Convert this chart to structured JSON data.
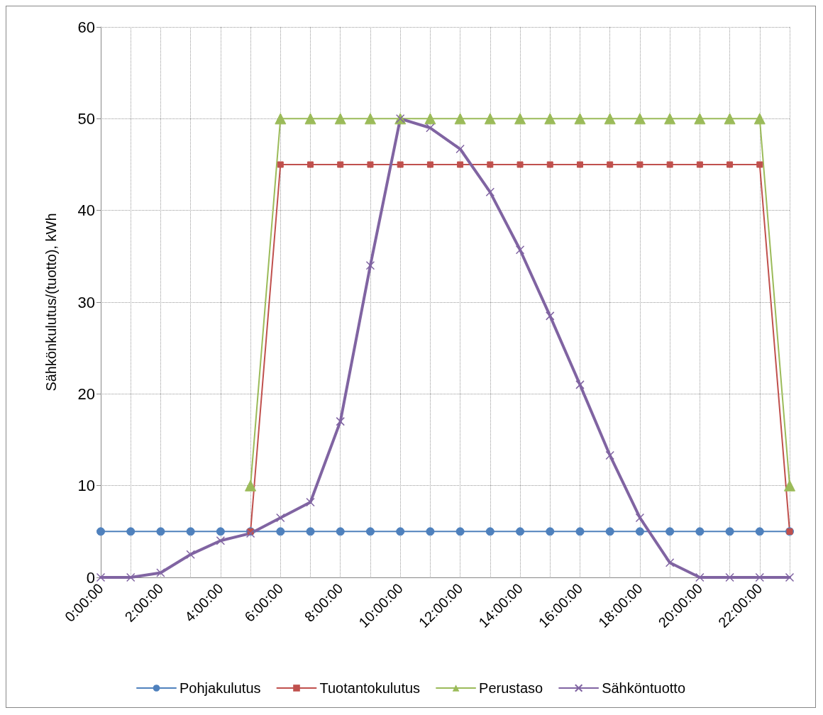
{
  "chart_data": {
    "type": "line",
    "ylabel": "Sähkönkulutus/(tuotto), kWh",
    "categories": [
      "0:00:00",
      null,
      "2:00:00",
      null,
      "4:00:00",
      null,
      "6:00:00",
      null,
      "8:00:00",
      null,
      "10:00:00",
      null,
      "12:00:00",
      null,
      "14:00:00",
      null,
      "16:00:00",
      null,
      "18:00:00",
      null,
      "20:00:00",
      null,
      "22:00:00",
      null
    ],
    "series": [
      {
        "name": "Pohjakulutus",
        "color": "#4f81bd",
        "marker": "circle",
        "values": [
          5,
          5,
          5,
          5,
          5,
          5,
          5,
          5,
          5,
          5,
          5,
          5,
          5,
          5,
          5,
          5,
          5,
          5,
          5,
          5,
          5,
          5,
          5,
          5
        ]
      },
      {
        "name": "Tuotantokulutus",
        "color": "#c0504d",
        "marker": "square",
        "values": [
          null,
          null,
          null,
          null,
          null,
          5,
          45,
          45,
          45,
          45,
          45,
          45,
          45,
          45,
          45,
          45,
          45,
          45,
          45,
          45,
          45,
          45,
          45,
          5
        ]
      },
      {
        "name": "Perustaso",
        "color": "#9bbb59",
        "marker": "triangle",
        "values": [
          null,
          null,
          null,
          null,
          null,
          10,
          50,
          50,
          50,
          50,
          50,
          50,
          50,
          50,
          50,
          50,
          50,
          50,
          50,
          50,
          50,
          50,
          50,
          10
        ]
      },
      {
        "name": "Sähköntuotto",
        "color": "#8064a2",
        "marker": "cross",
        "values": [
          0,
          0,
          0.5,
          2.5,
          4,
          4.8,
          6.5,
          8.2,
          17,
          34,
          50,
          49,
          46.7,
          42,
          35.7,
          28.5,
          21,
          13.3,
          6.5,
          1.6,
          0,
          0,
          0,
          0
        ]
      }
    ],
    "ylim": [
      0,
      60
    ],
    "yticks": [
      0,
      10,
      20,
      30,
      40,
      50,
      60
    ],
    "grid": true,
    "legend": "bottom"
  }
}
